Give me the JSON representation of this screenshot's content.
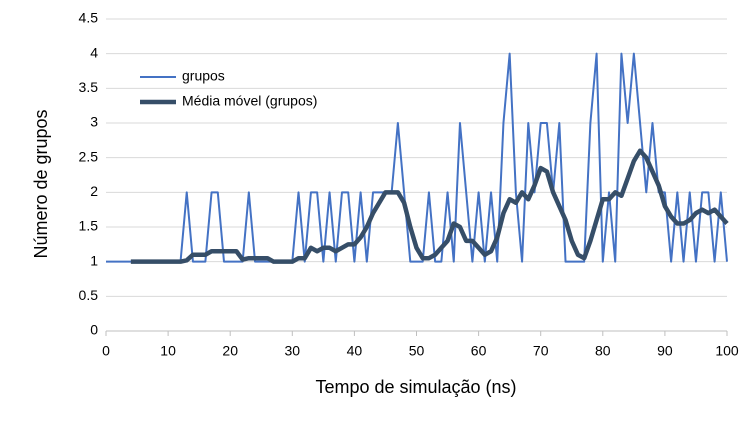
{
  "chart_data": {
    "type": "line",
    "xlabel": "Tempo de simulação (ns)",
    "ylabel": "Número de grupos",
    "x": [
      0,
      1,
      2,
      3,
      4,
      5,
      6,
      7,
      8,
      9,
      10,
      11,
      12,
      13,
      14,
      15,
      16,
      17,
      18,
      19,
      20,
      21,
      22,
      23,
      24,
      25,
      26,
      27,
      28,
      29,
      30,
      31,
      32,
      33,
      34,
      35,
      36,
      37,
      38,
      39,
      40,
      41,
      42,
      43,
      44,
      45,
      46,
      47,
      48,
      49,
      50,
      51,
      52,
      53,
      54,
      55,
      56,
      57,
      58,
      59,
      60,
      61,
      62,
      63,
      64,
      65,
      66,
      67,
      68,
      69,
      70,
      71,
      72,
      73,
      74,
      75,
      76,
      77,
      78,
      79,
      80,
      81,
      82,
      83,
      84,
      85,
      86,
      87,
      88,
      89,
      90,
      91,
      92,
      93,
      94,
      95,
      96,
      97,
      98,
      99,
      100
    ],
    "series": [
      {
        "name": "grupos",
        "color": "#4472c4",
        "width": 2,
        "values": [
          1,
          1,
          1,
          1,
          1,
          1,
          1,
          1,
          1,
          1,
          1,
          1,
          1,
          2,
          1,
          1,
          1,
          2,
          2,
          1,
          1,
          1,
          1,
          2,
          1,
          1,
          1,
          1,
          1,
          1,
          1,
          2,
          1,
          2,
          2,
          1,
          2,
          1,
          2,
          2,
          1,
          2,
          1,
          2,
          2,
          2,
          2,
          3,
          2,
          1,
          1,
          1,
          2,
          1,
          1,
          2,
          1,
          3,
          2,
          1,
          2,
          1,
          2,
          1,
          3,
          4,
          2,
          1,
          3,
          2,
          3,
          3,
          2,
          3,
          1,
          1,
          1,
          1,
          3,
          4,
          1,
          2,
          1,
          4,
          3,
          4,
          3,
          2,
          3,
          2,
          2,
          1,
          2,
          1,
          2,
          1,
          2,
          2,
          1,
          2,
          1
        ]
      },
      {
        "name": "Média móvel (grupos)",
        "color": "#364e68",
        "width": 4.5,
        "values": [
          null,
          null,
          null,
          null,
          1,
          1,
          1,
          1,
          1,
          1,
          1,
          1,
          1,
          1.02,
          1.1,
          1.1,
          1.1,
          1.15,
          1.15,
          1.15,
          1.15,
          1.15,
          1.03,
          1.05,
          1.05,
          1.05,
          1.05,
          1,
          1,
          1,
          1,
          1.05,
          1.05,
          1.2,
          1.15,
          1.2,
          1.2,
          1.15,
          1.2,
          1.25,
          1.25,
          1.35,
          1.5,
          1.7,
          1.85,
          2,
          2,
          2,
          1.85,
          1.5,
          1.2,
          1.05,
          1.05,
          1.1,
          1.2,
          1.3,
          1.55,
          1.5,
          1.3,
          1.3,
          1.2,
          1.1,
          1.15,
          1.35,
          1.7,
          1.9,
          1.85,
          2,
          1.9,
          2.1,
          2.35,
          2.3,
          2,
          1.8,
          1.6,
          1.3,
          1.1,
          1.05,
          1.3,
          1.6,
          1.9,
          1.9,
          2,
          1.95,
          2.2,
          2.45,
          2.6,
          2.5,
          2.3,
          2.1,
          1.8,
          1.65,
          1.55,
          1.55,
          1.6,
          1.7,
          1.75,
          1.7,
          1.75,
          1.65,
          1.55
        ]
      }
    ],
    "xlim": [
      0,
      100
    ],
    "xticks": [
      0,
      10,
      20,
      30,
      40,
      50,
      60,
      70,
      80,
      90,
      100
    ],
    "ylim": [
      0,
      4.5
    ],
    "yticks": [
      0,
      0.5,
      1,
      1.5,
      2,
      2.5,
      3,
      3.5,
      4,
      4.5
    ],
    "grid": true,
    "legend": "upper-left"
  }
}
